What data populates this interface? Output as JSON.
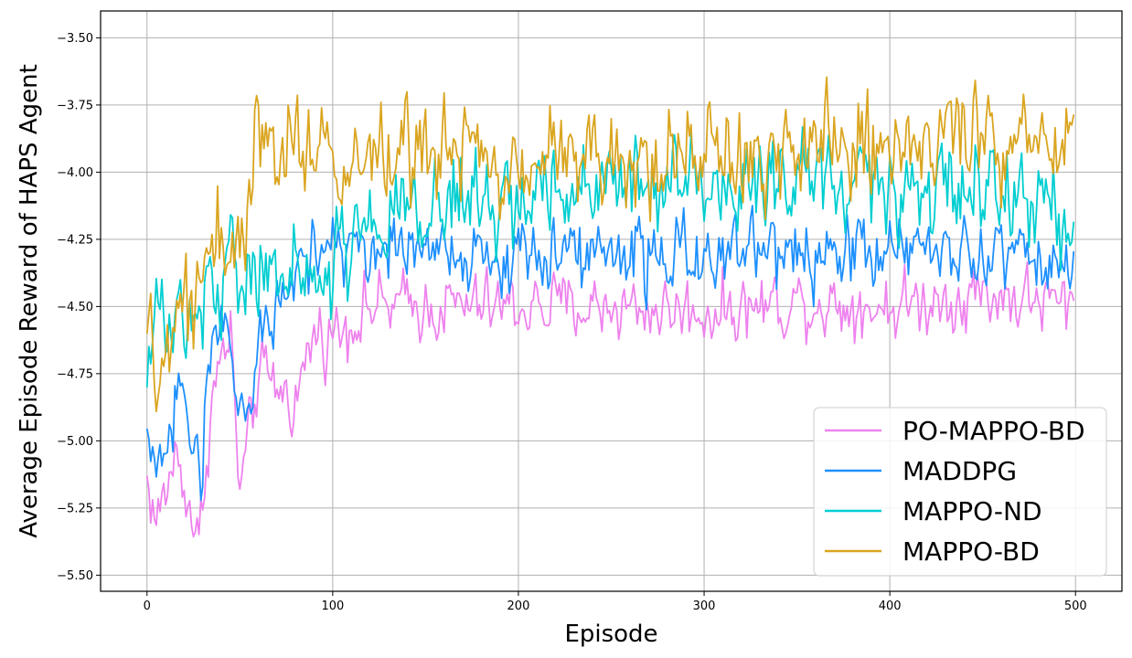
{
  "chart_data": {
    "type": "line",
    "title": "",
    "xlabel": "Episode",
    "ylabel": "Average Episode Reward of HAPS Agent",
    "xlim": [
      -25,
      525
    ],
    "ylim": [
      -5.56,
      -3.4
    ],
    "xticks": [
      0,
      100,
      200,
      300,
      400,
      500
    ],
    "yticks": [
      -5.5,
      -5.25,
      -5.0,
      -4.75,
      -4.5,
      -4.25,
      -4.0,
      -3.75,
      -3.5
    ],
    "grid": true,
    "legend_position": "bottom-right",
    "episodes": 500,
    "series": [
      {
        "name": "PO-MAPPO-BD",
        "color": "#EE82EE",
        "anchors": [
          [
            0,
            -5.15
          ],
          [
            5,
            -5.3
          ],
          [
            10,
            -5.2
          ],
          [
            15,
            -5.05
          ],
          [
            20,
            -5.15
          ],
          [
            25,
            -5.3
          ],
          [
            28,
            -5.4
          ],
          [
            32,
            -5.05
          ],
          [
            35,
            -4.85
          ],
          [
            40,
            -4.7
          ],
          [
            45,
            -4.6
          ],
          [
            50,
            -5.2
          ],
          [
            55,
            -5.0
          ],
          [
            60,
            -4.75
          ],
          [
            70,
            -4.8
          ],
          [
            80,
            -4.85
          ],
          [
            90,
            -4.6
          ],
          [
            100,
            -4.6
          ],
          [
            120,
            -4.5
          ],
          [
            150,
            -4.5
          ],
          [
            200,
            -4.5
          ],
          [
            250,
            -4.5
          ],
          [
            300,
            -4.52
          ],
          [
            350,
            -4.48
          ],
          [
            400,
            -4.5
          ],
          [
            450,
            -4.45
          ],
          [
            499,
            -4.5
          ]
        ],
        "noise": 0.09
      },
      {
        "name": "MADDPG",
        "color": "#1E90FF",
        "anchors": [
          [
            0,
            -4.9
          ],
          [
            5,
            -5.1
          ],
          [
            10,
            -5.05
          ],
          [
            15,
            -4.85
          ],
          [
            20,
            -4.8
          ],
          [
            25,
            -5.0
          ],
          [
            28,
            -5.15
          ],
          [
            32,
            -4.9
          ],
          [
            35,
            -4.7
          ],
          [
            40,
            -4.5
          ],
          [
            45,
            -4.65
          ],
          [
            50,
            -4.95
          ],
          [
            55,
            -4.9
          ],
          [
            60,
            -4.6
          ],
          [
            70,
            -4.6
          ],
          [
            80,
            -4.4
          ],
          [
            90,
            -4.3
          ],
          [
            100,
            -4.25
          ],
          [
            120,
            -4.3
          ],
          [
            150,
            -4.3
          ],
          [
            200,
            -4.3
          ],
          [
            250,
            -4.3
          ],
          [
            300,
            -4.3
          ],
          [
            350,
            -4.3
          ],
          [
            400,
            -4.3
          ],
          [
            450,
            -4.3
          ],
          [
            499,
            -4.35
          ]
        ],
        "noise": 0.1
      },
      {
        "name": "MAPPO-ND",
        "color": "#00CED1",
        "anchors": [
          [
            0,
            -4.8
          ],
          [
            5,
            -4.5
          ],
          [
            10,
            -4.6
          ],
          [
            15,
            -4.5
          ],
          [
            20,
            -4.6
          ],
          [
            25,
            -4.55
          ],
          [
            30,
            -4.5
          ],
          [
            35,
            -4.4
          ],
          [
            40,
            -4.45
          ],
          [
            45,
            -4.35
          ],
          [
            50,
            -4.45
          ],
          [
            60,
            -4.35
          ],
          [
            70,
            -4.4
          ],
          [
            80,
            -4.35
          ],
          [
            90,
            -4.4
          ],
          [
            100,
            -4.3
          ],
          [
            120,
            -4.15
          ],
          [
            150,
            -4.1
          ],
          [
            200,
            -4.1
          ],
          [
            250,
            -4.05
          ],
          [
            300,
            -4.05
          ],
          [
            350,
            -4.05
          ],
          [
            400,
            -4.05
          ],
          [
            450,
            -4.05
          ],
          [
            499,
            -4.15
          ]
        ],
        "noise": 0.13
      },
      {
        "name": "MAPPO-BD",
        "color": "#DAA520",
        "anchors": [
          [
            0,
            -4.5
          ],
          [
            5,
            -4.75
          ],
          [
            10,
            -4.65
          ],
          [
            15,
            -4.7
          ],
          [
            20,
            -4.5
          ],
          [
            25,
            -4.6
          ],
          [
            30,
            -4.4
          ],
          [
            35,
            -4.3
          ],
          [
            40,
            -4.2
          ],
          [
            45,
            -4.3
          ],
          [
            50,
            -4.3
          ],
          [
            55,
            -4.1
          ],
          [
            60,
            -3.85
          ],
          [
            70,
            -3.9
          ],
          [
            80,
            -3.9
          ],
          [
            90,
            -3.85
          ],
          [
            100,
            -4.05
          ],
          [
            120,
            -3.95
          ],
          [
            150,
            -3.95
          ],
          [
            200,
            -3.95
          ],
          [
            250,
            -3.95
          ],
          [
            300,
            -3.95
          ],
          [
            350,
            -3.9
          ],
          [
            400,
            -3.9
          ],
          [
            450,
            -3.85
          ],
          [
            499,
            -3.9
          ]
        ],
        "noise": 0.13
      }
    ]
  }
}
